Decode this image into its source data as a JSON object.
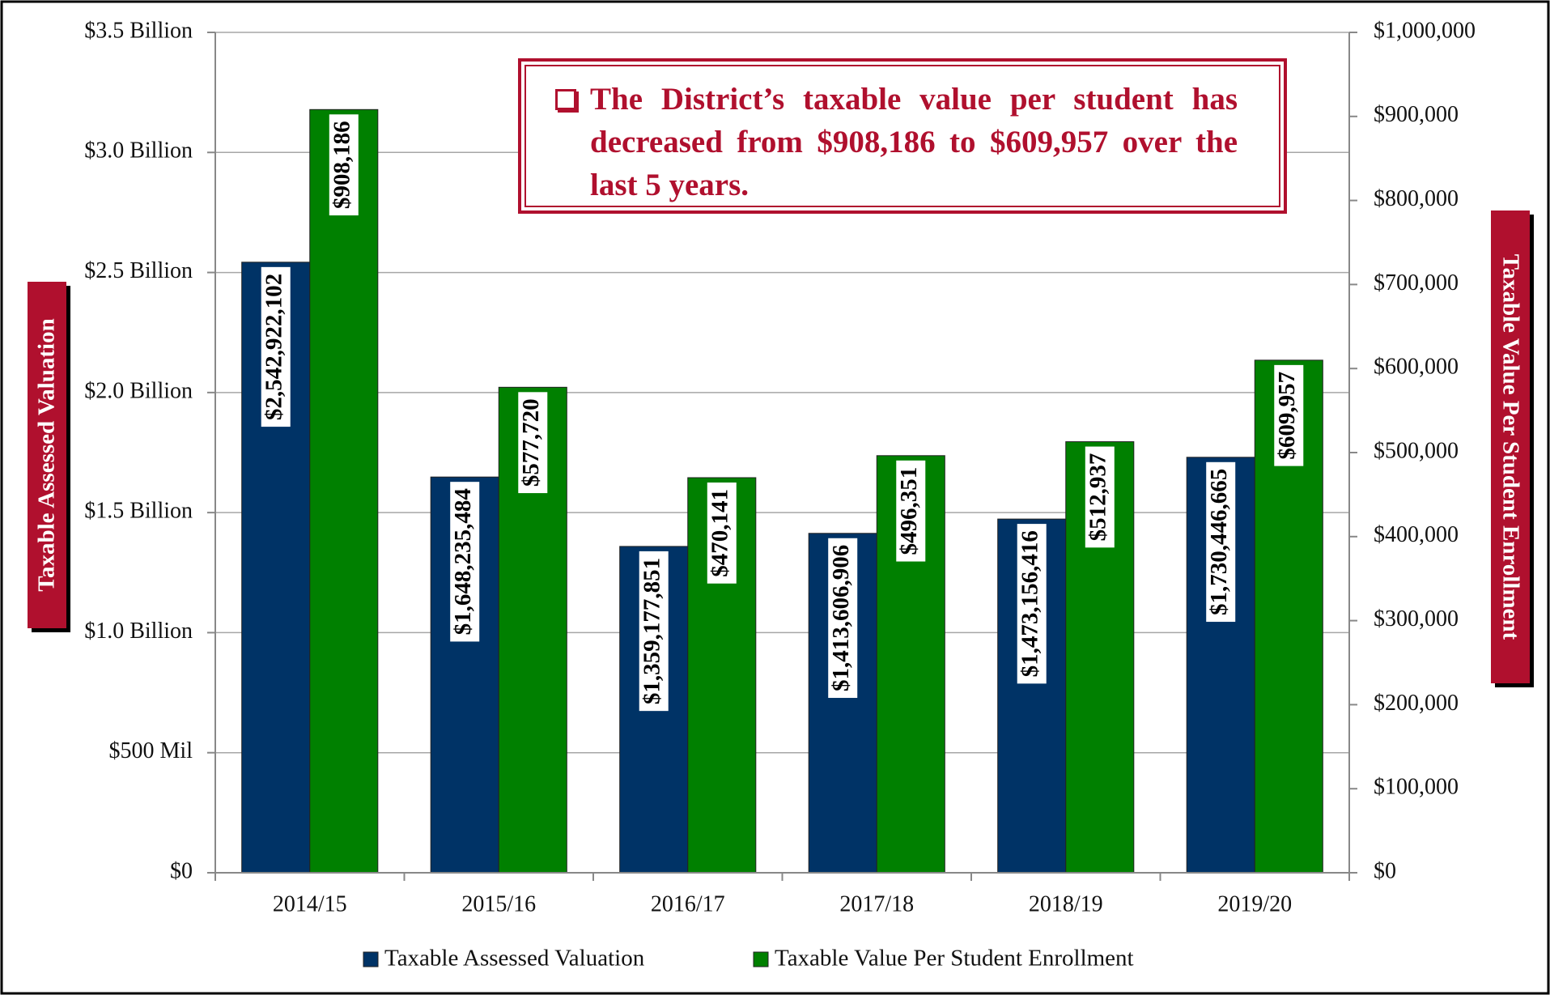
{
  "chart_data": {
    "type": "bar",
    "annotation": "The District’s taxable value per student has decreased from $908,186 to $609,957 over the last 5 years.",
    "y_label": "Taxable Assessed Valuation",
    "y2_label": "Taxable Value Per Student Enrollment",
    "categories": [
      "2014/15",
      "2015/16",
      "2016/17",
      "2017/18",
      "2018/19",
      "2019/20"
    ],
    "series": [
      {
        "name": "Taxable Assessed Valuation",
        "color": "#003366",
        "axis": "y",
        "values": [
          2542922102,
          1648235484,
          1359177851,
          1413606906,
          1473156416,
          1730446665
        ],
        "value_labels": [
          "$2,542,922,102",
          "$1,648,235,484",
          "$1,359,177,851",
          "$1,413,606,906",
          "$1,473,156,416",
          "$1,730,446,665"
        ]
      },
      {
        "name": "Taxable Value Per Student Enrollment",
        "color": "#008000",
        "axis": "y2",
        "values": [
          908186,
          577720,
          470141,
          496351,
          512937,
          609957
        ],
        "value_labels": [
          "$908,186",
          "$577,720",
          "$470,141",
          "$496,351",
          "$512,937",
          "$609,957"
        ]
      }
    ],
    "ylim": [
      0,
      3500000000
    ],
    "yticks": [
      {
        "value": 0,
        "label": "$0"
      },
      {
        "value": 500000000,
        "label": "$500 Mil"
      },
      {
        "value": 1000000000,
        "label": "$1.0 Billion"
      },
      {
        "value": 1500000000,
        "label": "$1.5 Billion"
      },
      {
        "value": 2000000000,
        "label": "$2.0 Billion"
      },
      {
        "value": 2500000000,
        "label": "$2.5 Billion"
      },
      {
        "value": 3000000000,
        "label": "$3.0 Billion"
      },
      {
        "value": 3500000000,
        "label": "$3.5 Billion"
      }
    ],
    "y2lim": [
      0,
      1000000
    ],
    "y2ticks": [
      {
        "value": 0,
        "label": "$0"
      },
      {
        "value": 100000,
        "label": "$100,000"
      },
      {
        "value": 200000,
        "label": "$200,000"
      },
      {
        "value": 300000,
        "label": "$300,000"
      },
      {
        "value": 400000,
        "label": "$400,000"
      },
      {
        "value": 500000,
        "label": "$500,000"
      },
      {
        "value": 600000,
        "label": "$600,000"
      },
      {
        "value": 700000,
        "label": "$700,000"
      },
      {
        "value": 800000,
        "label": "$800,000"
      },
      {
        "value": 900000,
        "label": "$900,000"
      },
      {
        "value": 1000000,
        "label": "$1,000,000"
      }
    ],
    "grid": true,
    "legend": "bottom"
  }
}
